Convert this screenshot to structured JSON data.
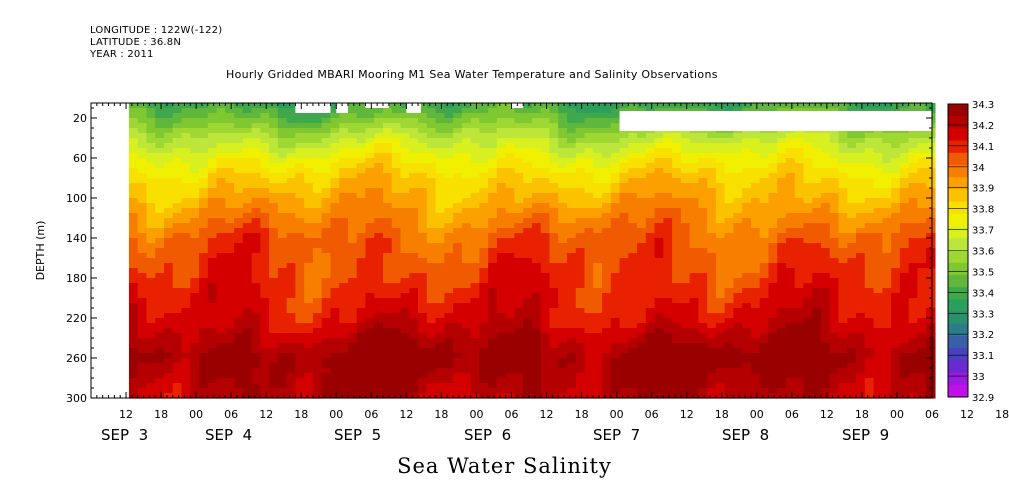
{
  "header": {
    "longitude": "LONGITUDE : 122W(-122)",
    "latitude": "LATITUDE : 36.8N",
    "year": "YEAR : 2011"
  },
  "chart_data": {
    "type": "heatmap",
    "title": "Hourly Gridded MBARI Mooring M1 Sea Water Temperature and Salinity Observations",
    "xlabel": "",
    "ylabel": "DEPTH (m)",
    "footer": "Sea Water Salinity",
    "x_axis": {
      "hour_ticks": [
        "12",
        "18",
        "00",
        "06",
        "12",
        "18",
        "00",
        "06",
        "12",
        "18",
        "00",
        "06",
        "12",
        "18",
        "00",
        "06",
        "12",
        "18",
        "00",
        "06",
        "12",
        "18",
        "00",
        "06",
        "12",
        "18",
        "00",
        "06",
        "12",
        "18"
      ],
      "tick_hours_start": 12,
      "tick_step_hours": 6,
      "day_labels": [
        "SEP  3",
        "SEP  4",
        "SEP  5",
        "SEP  6",
        "SEP  7",
        "SEP  8",
        "SEP  9"
      ],
      "range": [
        "2011-09-03 06:00",
        "2011-09-09 23:00"
      ]
    },
    "y_axis": {
      "ticks": [
        20,
        60,
        100,
        140,
        180,
        220,
        260,
        300
      ],
      "range": [
        300,
        5
      ],
      "inverted": true
    },
    "colorbar": {
      "levels": [
        34.3,
        34.2,
        34.1,
        34,
        33.9,
        33.8,
        33.7,
        33.6,
        33.5,
        33.4,
        33.3,
        33.2,
        33.1,
        33,
        32.9
      ],
      "colors": [
        "#9b0000",
        "#b40000",
        "#d40000",
        "#e82200",
        "#f05a00",
        "#f87e00",
        "#fca000",
        "#fbc200",
        "#f8e000",
        "#f0f000",
        "#d9f020",
        "#bde63a",
        "#9fd832",
        "#7fc832",
        "#5fb83c",
        "#3fa84c",
        "#2aa05c",
        "#28906c",
        "#2c7c8c",
        "#3a5ea8",
        "#4a40c0",
        "#6a2ad0",
        "#9a1ae0",
        "#c010e8"
      ]
    },
    "salinity_profile": [
      {
        "depth": 5,
        "value": 33.35
      },
      {
        "depth": 20,
        "value": 33.45
      },
      {
        "depth": 40,
        "value": 33.6
      },
      {
        "depth": 60,
        "value": 33.72
      },
      {
        "depth": 80,
        "value": 33.82
      },
      {
        "depth": 100,
        "value": 33.88
      },
      {
        "depth": 120,
        "value": 33.95
      },
      {
        "depth": 140,
        "value": 34.02
      },
      {
        "depth": 180,
        "value": 34.07
      },
      {
        "depth": 220,
        "value": 34.14
      },
      {
        "depth": 260,
        "value": 34.28
      },
      {
        "depth": 300,
        "value": 34.2
      }
    ],
    "grid": false,
    "legend": "right"
  }
}
